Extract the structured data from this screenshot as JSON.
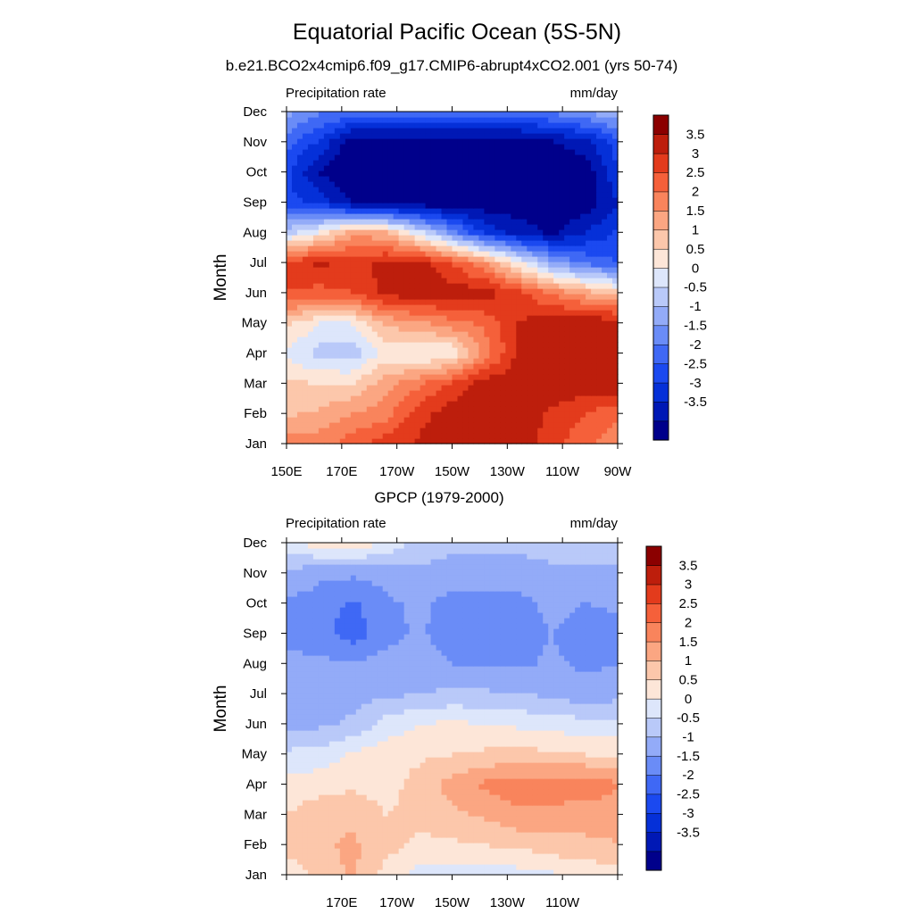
{
  "title": "Equatorial Pacific Ocean (5S-5N)",
  "subtitle": "b.e21.BCO2x4cmip6.f09_g17.CMIP6-abrupt4xCO2.001 (yrs 50-74)",
  "colors": {
    "levels": [
      "#00008b",
      "#0018b5",
      "#0530d8",
      "#1b49f0",
      "#3f68f5",
      "#6a8cf7",
      "#93abf8",
      "#b9c9f9",
      "#dde6fb",
      "#fde6d8",
      "#fcc7ab",
      "#fba682",
      "#f9845c",
      "#f5603a",
      "#e33b1c",
      "#bd1e0c",
      "#8b0000"
    ]
  },
  "chart_data": [
    {
      "type": "heatmap",
      "title": "",
      "left_label": "Precipitation rate",
      "right_label": "mm/day",
      "ylabel": "Month",
      "xlabel": "",
      "x_range": [
        "150E",
        "90W"
      ],
      "x_ticks": [
        "150E",
        "170E",
        "170W",
        "150W",
        "130W",
        "110W",
        "90W"
      ],
      "y_ticks": [
        "Jan",
        "Feb",
        "Mar",
        "Apr",
        "May",
        "Jun",
        "Jul",
        "Aug",
        "Sep",
        "Oct",
        "Nov",
        "Dec"
      ],
      "colorbar_levels": [
        "3.5",
        "3",
        "2.5",
        "2",
        "1.5",
        "1",
        "0.5",
        "0",
        "-0.5",
        "-1",
        "-1.5",
        "-2",
        "-2.5",
        "-3",
        "-3.5"
      ],
      "grid": [
        [
          2.4,
          2.3,
          2.8,
          3.3,
          3.6,
          3.8,
          3.8,
          3.8,
          3.3,
          2.6,
          2.2
        ],
        [
          1.4,
          1.6,
          2.0,
          2.3,
          3.3,
          3.8,
          3.8,
          3.8,
          3.4,
          3.0,
          2.6
        ],
        [
          1.1,
          1.0,
          1.0,
          1.8,
          2.4,
          3.1,
          3.8,
          3.9,
          3.9,
          3.9,
          3.9
        ],
        [
          0.4,
          -0.2,
          -0.3,
          0.7,
          0.4,
          0.5,
          2.2,
          3.6,
          3.9,
          3.9,
          3.9
        ],
        [
          1.1,
          0.5,
          0.5,
          1.6,
          1.9,
          2.3,
          2.6,
          3.5,
          3.9,
          3.9,
          3.9
        ],
        [
          3.0,
          2.8,
          3.0,
          3.7,
          3.8,
          3.8,
          3.8,
          3.2,
          2.4,
          1.8,
          1.2
        ],
        [
          3.2,
          3.6,
          3.4,
          3.6,
          3.8,
          3.0,
          2.0,
          0.6,
          -0.8,
          -1.6,
          -2.0
        ],
        [
          -0.2,
          0.6,
          1.8,
          1.6,
          0.2,
          -1.2,
          -2.6,
          -3.2,
          -3.6,
          -3.0,
          -2.4
        ],
        [
          -2.3,
          -2.6,
          -3.6,
          -3.9,
          -3.9,
          -3.9,
          -3.9,
          -3.9,
          -3.9,
          -3.9,
          -3.0
        ],
        [
          -2.4,
          -3.6,
          -3.9,
          -3.9,
          -3.9,
          -3.9,
          -3.9,
          -3.9,
          -3.9,
          -3.9,
          -2.6
        ],
        [
          -1.8,
          -2.6,
          -3.9,
          -3.9,
          -3.9,
          -3.9,
          -3.9,
          -3.8,
          -3.6,
          -3.2,
          -2.2
        ],
        [
          -0.8,
          -1.4,
          -1.6,
          -1.8,
          -1.8,
          -1.8,
          -1.8,
          -1.7,
          -1.4,
          -1.0,
          -0.6
        ]
      ]
    },
    {
      "type": "heatmap",
      "title": "GPCP (1979-2000)",
      "left_label": "Precipitation rate",
      "right_label": "mm/day",
      "ylabel": "Month",
      "xlabel": "",
      "x_range": [
        "150E",
        "90W"
      ],
      "x_ticks": [
        "",
        "170E",
        "170W",
        "150W",
        "130W",
        "110W",
        ""
      ],
      "y_ticks": [
        "Jan",
        "Feb",
        "Mar",
        "Apr",
        "May",
        "Jun",
        "Jul",
        "Aug",
        "Sep",
        "Oct",
        "Nov",
        "Dec"
      ],
      "colorbar_levels": [
        "3.5",
        "3",
        "2.5",
        "2",
        "1.5",
        "1",
        "0.5",
        "0",
        "-0.5",
        "-1",
        "-1.5",
        "-2",
        "-2.5",
        "-3",
        "-3.5"
      ],
      "grid": [
        [
          0.6,
          1.2,
          1.6,
          0.8,
          0.3,
          0.2,
          0.2,
          0.3,
          0.4,
          0.6,
          0.8
        ],
        [
          1.2,
          1.4,
          1.6,
          1.2,
          0.9,
          0.9,
          1.0,
          1.1,
          1.3,
          1.4,
          1.5
        ],
        [
          1.0,
          1.3,
          1.4,
          1.0,
          1.1,
          1.4,
          1.6,
          1.9,
          1.9,
          1.7,
          1.6
        ],
        [
          0.7,
          0.8,
          0.9,
          0.8,
          1.2,
          1.7,
          2.1,
          2.3,
          2.2,
          2.4,
          2.1
        ],
        [
          0.1,
          0.2,
          0.6,
          0.8,
          0.9,
          1.0,
          1.1,
          1.2,
          1.1,
          1.0,
          0.9
        ],
        [
          -0.6,
          -0.6,
          -0.4,
          0.2,
          0.5,
          0.6,
          0.5,
          0.4,
          0.3,
          0.2,
          0.2
        ],
        [
          -0.7,
          -0.8,
          -0.7,
          -0.6,
          -0.5,
          -0.4,
          -0.4,
          -0.5,
          -0.6,
          -0.8,
          -0.7
        ],
        [
          -0.8,
          -0.9,
          -0.9,
          -0.8,
          -0.7,
          -1.0,
          -1.1,
          -1.1,
          -0.9,
          -1.1,
          -1.0
        ],
        [
          -1.2,
          -1.3,
          -1.8,
          -1.2,
          -0.9,
          -1.3,
          -1.3,
          -1.3,
          -1.0,
          -1.3,
          -1.2
        ],
        [
          -1.1,
          -1.2,
          -1.6,
          -1.1,
          -0.9,
          -1.2,
          -1.2,
          -1.2,
          -0.8,
          -1.0,
          -0.9
        ],
        [
          -0.6,
          -0.9,
          -0.9,
          -0.8,
          -0.6,
          -0.7,
          -0.7,
          -0.7,
          -0.6,
          -0.6,
          -0.6
        ],
        [
          0.2,
          0.8,
          0.9,
          0.4,
          -0.2,
          -0.4,
          -0.4,
          -0.4,
          -0.3,
          -0.3,
          -0.2
        ]
      ]
    }
  ]
}
